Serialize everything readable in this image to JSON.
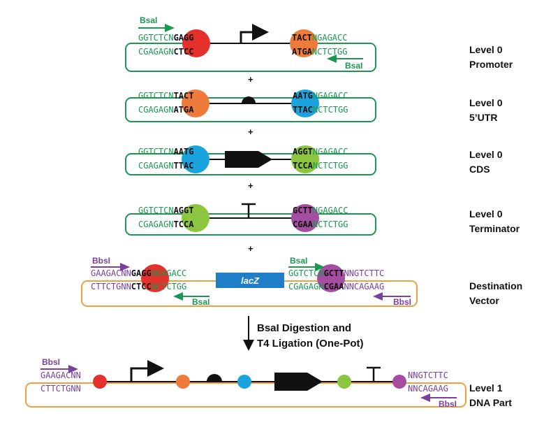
{
  "colors": {
    "green": "#1a9850",
    "purple": "#7b3f9e",
    "red": "#e4312b",
    "orange": "#ef7b3a",
    "blue": "#1aa3dc",
    "lime": "#8cc63f",
    "magenta": "#a54ea1",
    "orange_border": "#f0a040",
    "lacz_fill": "#1e7fc8",
    "black": "#111111"
  },
  "levels": [
    {
      "label_line1": "Level 0",
      "label_line2": "Promoter",
      "top_left_grey": "GGTCTCN",
      "top_left_over": "GAGG",
      "bot_left_grey": "CGAGAGN",
      "bot_left_over": "CTCC",
      "top_right_over": "TACT",
      "top_right_grey": "NGAGACC",
      "bot_right_over": "ATGA",
      "bot_right_grey": "NCTCTGG",
      "left_enzyme": "BsaI",
      "right_enzyme": "BsaI"
    },
    {
      "label_line1": "Level 0",
      "label_line2": "5’UTR",
      "top_left_grey": "GGTCTCN",
      "top_left_over": "TACT",
      "bot_left_grey": "CGAGAGN",
      "bot_left_over": "ATGA",
      "top_right_over": "AATG",
      "top_right_grey": "NGAGACC",
      "bot_right_over": "TTAC",
      "bot_right_grey": "NCTCTGG"
    },
    {
      "label_line1": "Level 0",
      "label_line2": "CDS",
      "top_left_grey": "GGTCTCN",
      "top_left_over": "AATG",
      "bot_left_grey": "CGAGAGN",
      "bot_left_over": "TTAC",
      "top_right_over": "AGGT",
      "top_right_grey": "NGAGACC",
      "bot_right_over": "TCCA",
      "bot_right_grey": "NCTCTGG"
    },
    {
      "label_line1": "Level 0",
      "label_line2": "Terminator",
      "top_left_grey": "GGTCTCN",
      "top_left_over": "AGGT",
      "bot_left_grey": "CGAGAGN",
      "bot_left_over": "TCCA",
      "top_right_over": "GCTT",
      "top_right_grey": "NGAGACC",
      "bot_right_over": "CGAA",
      "bot_right_grey": "NCTCTGG"
    }
  ],
  "plus": "+",
  "destination": {
    "label_line1": "Destination",
    "label_line2": "Vector",
    "bbsi_left": "BbsI",
    "bsai_left": "BsaI",
    "bsai_right": "BsaI",
    "bbsi_right": "BbsI",
    "top_left_purple": "GAAGACNN",
    "top_left_over": "GAGG",
    "top_left_green": "NGAGACC",
    "bot_left_purple": "CTTCTGNN",
    "bot_left_over": "CTCC",
    "bot_left_green": "NCTCTGG",
    "top_right_green": "GGTCTCN",
    "top_right_over": "GCTT",
    "top_right_purple": "NNGTCTTC",
    "bot_right_green": "CGAGAGN",
    "bot_right_over": "CGAA",
    "bot_right_purple": "NNCAGAAG",
    "lacz": "lacZ"
  },
  "step": {
    "line1": "BsaI Digestion and",
    "line2": "T4 Ligation (One-Pot)"
  },
  "level1": {
    "label_line1": "Level 1",
    "label_line2": "DNA Part",
    "bbsi_left": "BbsI",
    "bbsi_right": "BbsI",
    "top_left": "GAAGACNN",
    "bot_left": "CTTCTGNN",
    "top_right": "NNGTCTTC",
    "bot_right": "NNCAGAAG"
  }
}
